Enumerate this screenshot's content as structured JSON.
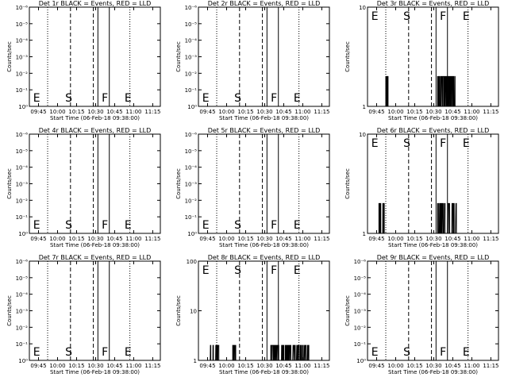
{
  "chart_data": [
    {
      "type": "line",
      "title": "Det 1r BLACK = Events, RED = LLD",
      "xlabel": "Start Time (06-Feb-18 09:38:00)",
      "ylabel": "Counts/sec",
      "x_ticks": [
        "09:45",
        "10:00",
        "10:15",
        "10:30",
        "10:45",
        "11:00",
        "11:15"
      ],
      "y_ticks": [
        "10⁰",
        "10⁻¹",
        "10⁻²",
        "10⁻³",
        "10⁻⁴",
        "10⁻⁵",
        "10⁻⁶"
      ],
      "y_scale": "log",
      "markers": [
        "E",
        "S",
        "F",
        "E"
      ],
      "series": []
    },
    {
      "type": "line",
      "title": "Det 2r BLACK = Events, RED = LLD",
      "xlabel": "Start Time (06-Feb-18 09:38:00)",
      "ylabel": "Counts/sec",
      "x_ticks": [
        "09:45",
        "10:00",
        "10:15",
        "10:30",
        "10:45",
        "11:00",
        "11:15"
      ],
      "y_ticks": [
        "10⁰",
        "10⁻¹",
        "10⁻²",
        "10⁻³",
        "10⁻⁴",
        "10⁻⁵",
        "10⁻⁶"
      ],
      "y_scale": "log",
      "markers": [
        "E",
        "S",
        "F",
        "E"
      ],
      "series": []
    },
    {
      "type": "line",
      "title": "Det 3r BLACK = Events, RED = LLD",
      "xlabel": "Start Time (06-Feb-18 09:38:00)",
      "ylabel": "Counts/sec",
      "x_ticks": [
        "09:45",
        "10:00",
        "10:15",
        "10:30",
        "10:45",
        "11:00",
        "11:15"
      ],
      "y_ticks": [
        "1",
        "10"
      ],
      "y_scale": "log",
      "markers": [
        "E",
        "S",
        "F",
        "E"
      ],
      "series": [
        {
          "color": "#000000",
          "style": "spiky",
          "baseline": 1,
          "level": 2,
          "segments": [
            [
              9.87,
              9.9
            ],
            [
              10.55,
              10.78
            ]
          ]
        }
      ]
    },
    {
      "type": "line",
      "title": "Det 4r BLACK = Events, RED = LLD",
      "xlabel": "Start Time (06-Feb-18 09:38:00)",
      "ylabel": "Counts/sec",
      "x_ticks": [
        "09:45",
        "10:00",
        "10:15",
        "10:30",
        "10:45",
        "11:00",
        "11:15"
      ],
      "y_ticks": [
        "10⁰",
        "10⁻¹",
        "10⁻²",
        "10⁻³",
        "10⁻⁴",
        "10⁻⁵",
        "10⁻⁶"
      ],
      "y_scale": "log",
      "markers": [
        "E",
        "S",
        "F",
        "E"
      ],
      "series": []
    },
    {
      "type": "line",
      "title": "Det 5r BLACK = Events, RED = LLD",
      "xlabel": "Start Time (06-Feb-18 09:38:00)",
      "ylabel": "Counts/sec",
      "x_ticks": [
        "09:45",
        "10:00",
        "10:15",
        "10:30",
        "10:45",
        "11:00",
        "11:15"
      ],
      "y_ticks": [
        "10⁰",
        "10⁻¹",
        "10⁻²",
        "10⁻³",
        "10⁻⁴",
        "10⁻⁵",
        "10⁻⁶"
      ],
      "y_scale": "log",
      "markers": [
        "E",
        "S",
        "F",
        "E"
      ],
      "series": []
    },
    {
      "type": "line",
      "title": "Det 6r BLACK = Events, RED = LLD",
      "xlabel": "Start Time (06-Feb-18 09:38:00)",
      "ylabel": "Counts/sec",
      "x_ticks": [
        "09:45",
        "10:00",
        "10:15",
        "10:30",
        "10:45",
        "11:00",
        "11:15"
      ],
      "y_ticks": [
        "1",
        "10"
      ],
      "y_scale": "log",
      "markers": [
        "E",
        "S",
        "F",
        "E"
      ],
      "series": [
        {
          "color": "#000000",
          "style": "spiky",
          "baseline": 1,
          "level": 2,
          "segments": [
            [
              9.78,
              9.85
            ],
            [
              10.55,
              10.8
            ]
          ]
        }
      ]
    },
    {
      "type": "line",
      "title": "Det 7r BLACK = Events, RED = LLD",
      "xlabel": "Start Time (06-Feb-18 09:38:00)",
      "ylabel": "Counts/sec",
      "x_ticks": [
        "09:45",
        "10:00",
        "10:15",
        "10:30",
        "10:45",
        "11:00",
        "11:15"
      ],
      "y_ticks": [
        "10⁰",
        "10⁻¹",
        "10⁻²",
        "10⁻³",
        "10⁻⁴",
        "10⁻⁵",
        "10⁻⁶"
      ],
      "y_scale": "log",
      "markers": [
        "E",
        "S",
        "F",
        "E"
      ],
      "series": []
    },
    {
      "type": "line",
      "title": "Det 8r BLACK = Events, RED = LLD",
      "xlabel": "Start Time (06-Feb-18 09:38:00)",
      "ylabel": "Counts/sec",
      "x_ticks": [
        "09:45",
        "10:00",
        "10:15",
        "10:30",
        "10:45",
        "11:00",
        "11:15"
      ],
      "y_ticks": [
        "1",
        "10",
        "100"
      ],
      "y_scale": "log",
      "markers": [
        "E",
        "S",
        "F",
        "E"
      ],
      "series": [
        {
          "color": "#000000",
          "style": "spiky",
          "baseline": 1,
          "level": 2,
          "segments": [
            [
              9.78,
              9.9
            ],
            [
              10.08,
              10.12
            ],
            [
              10.58,
              11.08
            ]
          ]
        }
      ]
    },
    {
      "type": "line",
      "title": "Det 9r BLACK = Events, RED = LLD",
      "xlabel": "Start Time (06-Feb-18 09:38:00)",
      "ylabel": "Counts/sec",
      "x_ticks": [
        "09:45",
        "10:00",
        "10:15",
        "10:30",
        "10:45",
        "11:00",
        "11:15"
      ],
      "y_ticks": [
        "10⁰",
        "10⁻¹",
        "10⁻²",
        "10⁻³",
        "10⁻⁴",
        "10⁻⁵",
        "10⁻⁶"
      ],
      "y_scale": "log",
      "markers": [
        "E",
        "S",
        "F",
        "E"
      ],
      "series": []
    }
  ]
}
